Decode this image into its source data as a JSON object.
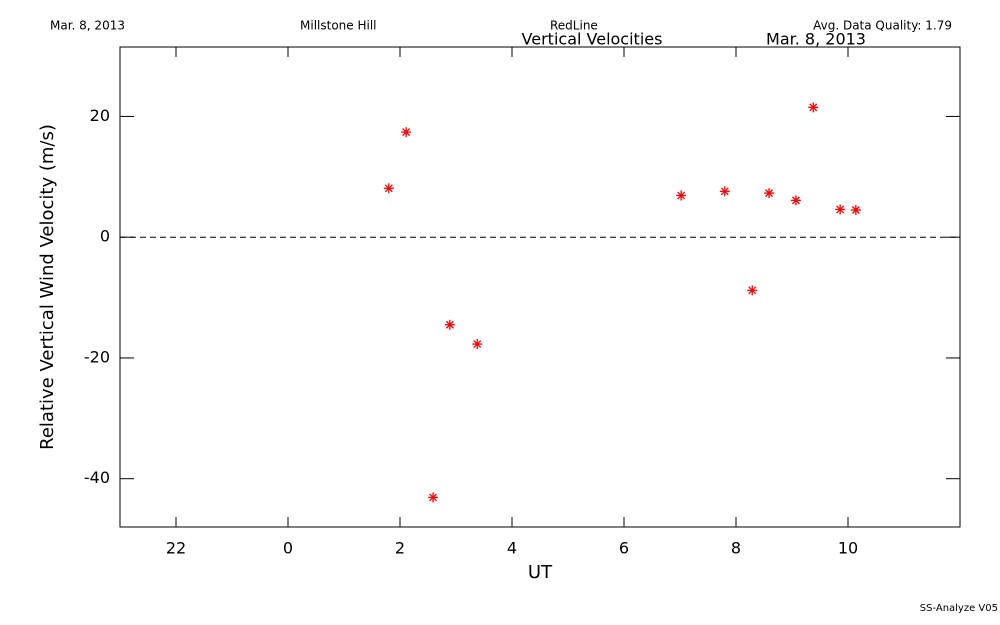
{
  "chart_data": {
    "type": "scatter",
    "header": {
      "date": "Mar. 8, 2013",
      "site": "Millstone Hill",
      "emission": "RedLine",
      "quality": "Avg. Data Quality: 1.79"
    },
    "title": "Vertical Velocities",
    "subtitle": "Mar. 8, 2013",
    "x_label": "UT",
    "y_label": "Relative Vertical Wind Velocity (m/s)",
    "footer": "SS-Analyze V05",
    "xlim": [
      -3,
      12
    ],
    "ylim": [
      -48,
      31.5
    ],
    "xticks": [
      {
        "value": -2,
        "label": "22"
      },
      0,
      2,
      4,
      6,
      8,
      10
    ],
    "yticks": [
      -40,
      -20,
      0,
      20
    ],
    "reference_line": 0,
    "series": [
      {
        "color": "#ff0000",
        "x": [
          1.8,
          2.11,
          2.59,
          2.89,
          3.38,
          7.02,
          7.8,
          8.29,
          8.59,
          9.07,
          9.38,
          9.86,
          10.14
        ],
        "values": [
          8.1,
          17.4,
          -43.1,
          -14.5,
          -17.7,
          6.9,
          7.6,
          -8.8,
          7.3,
          6.1,
          21.5,
          4.6,
          4.5
        ]
      }
    ]
  }
}
